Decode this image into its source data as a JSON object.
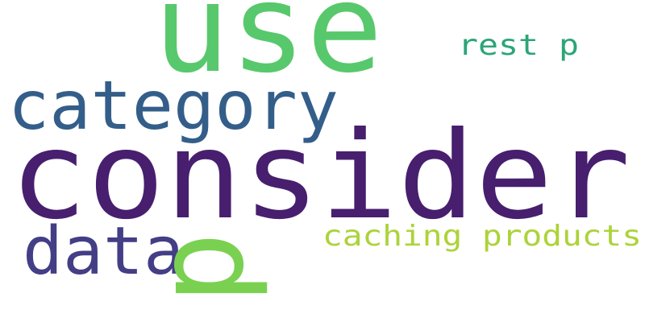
{
  "words": [
    {
      "text": "consider",
      "color": "#471f6e",
      "weight": 1.0,
      "rotated": false
    },
    {
      "text": "use",
      "color": "#58c86c",
      "weight": 0.85,
      "rotated": false
    },
    {
      "text": "category",
      "color": "#345e8a",
      "weight": 0.55,
      "rotated": false
    },
    {
      "text": "data",
      "color": "#433e85",
      "weight": 0.5,
      "rotated": false
    },
    {
      "text": "p",
      "color": "#7ad151",
      "weight": 0.6,
      "rotated": true
    },
    {
      "text": "rest p",
      "color": "#2ca577",
      "weight": 0.25,
      "rotated": false
    },
    {
      "text": "caching products",
      "color": "#acd33a",
      "weight": 0.25,
      "rotated": false
    }
  ]
}
